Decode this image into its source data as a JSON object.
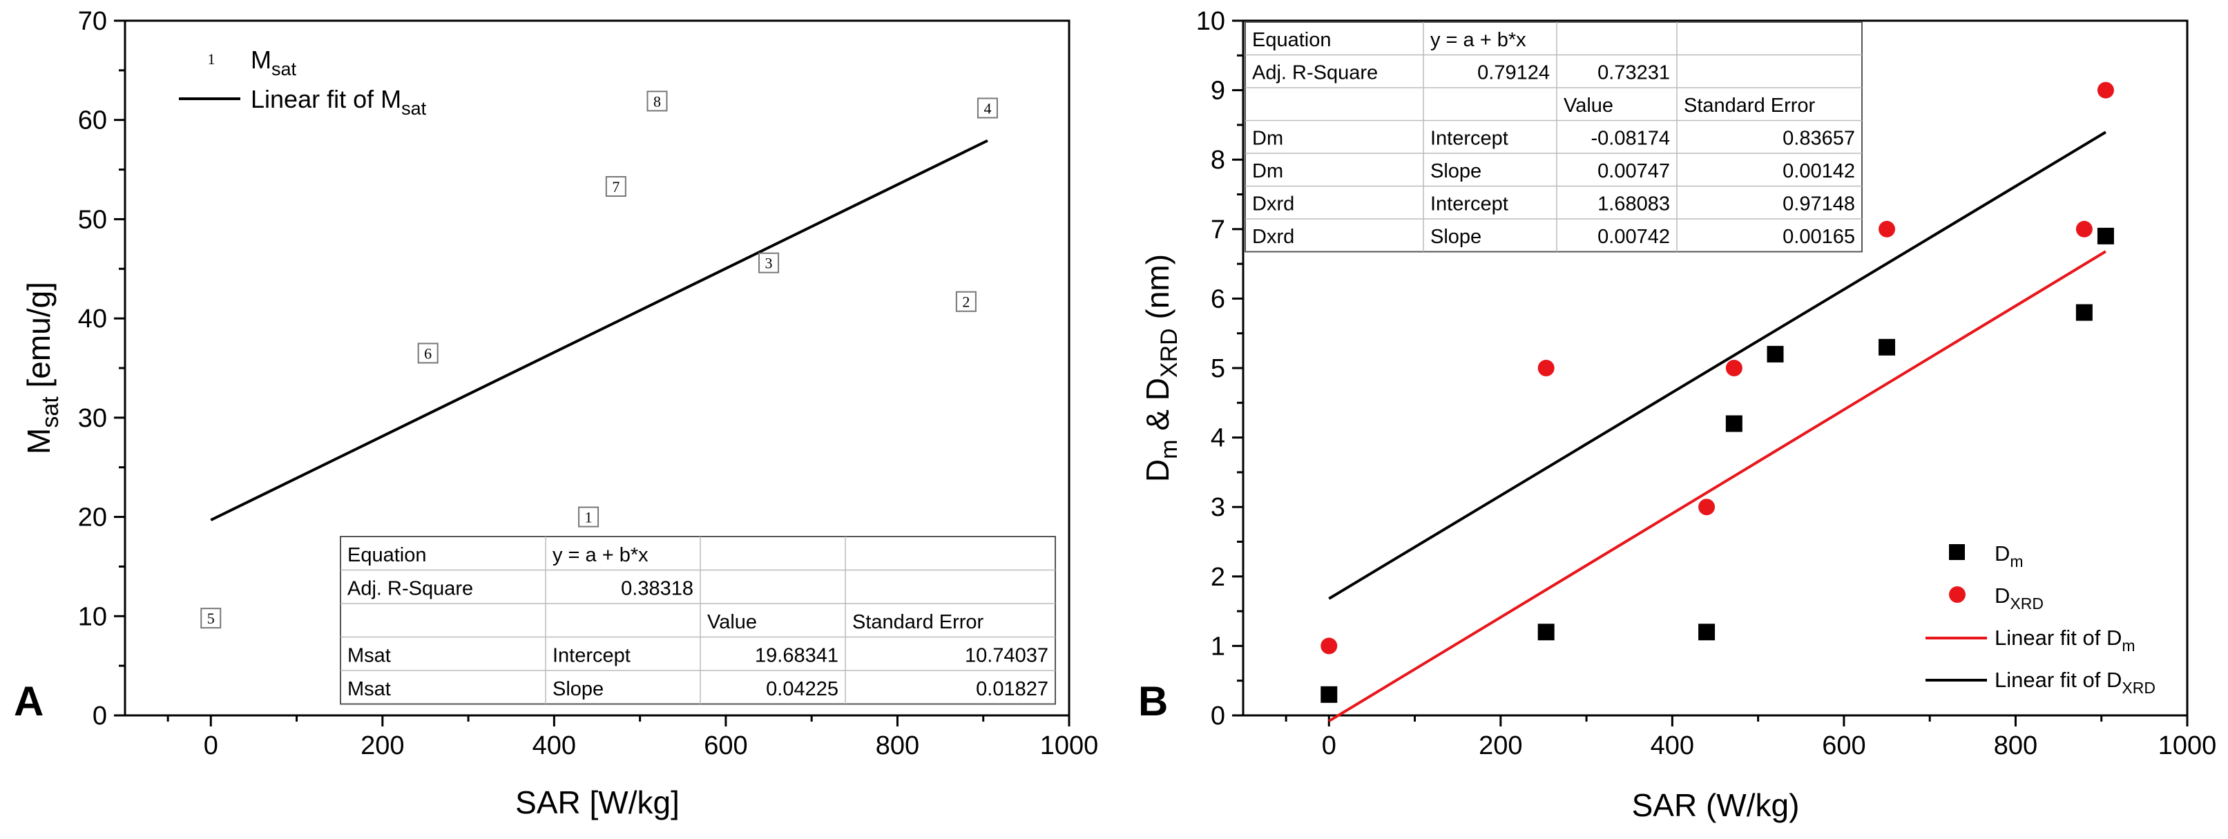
{
  "chart_data": [
    {
      "panel": "A",
      "type": "scatter",
      "xlabel": "SAR [W/kg]",
      "ylabel": {
        "main": "M",
        "sub": "sat",
        "rest": " [emu/g]"
      },
      "xlim": [
        -100,
        1000
      ],
      "ylim": [
        0,
        70
      ],
      "x_ticks": [
        0,
        200,
        400,
        600,
        800,
        1000
      ],
      "y_ticks": [
        0,
        10,
        20,
        30,
        40,
        50,
        60,
        70
      ],
      "points": [
        {
          "label": "1",
          "x": 440,
          "y": 20
        },
        {
          "label": "2",
          "x": 880,
          "y": 41.7
        },
        {
          "label": "3",
          "x": 650,
          "y": 45.6
        },
        {
          "label": "4",
          "x": 905,
          "y": 61.2
        },
        {
          "label": "5",
          "x": 0,
          "y": 9.8
        },
        {
          "label": "6",
          "x": 253,
          "y": 36.5
        },
        {
          "label": "7",
          "x": 472,
          "y": 53.3
        },
        {
          "label": "8",
          "x": 520,
          "y": 61.9
        }
      ],
      "fit": {
        "intercept": 19.68341,
        "slope": 0.04225,
        "x_range": [
          0,
          905
        ]
      },
      "legend": {
        "marker_symbol": "1",
        "scatter": {
          "main": "M",
          "sub": "sat"
        },
        "fit": {
          "main": "Linear fit of M",
          "sub": "sat"
        }
      },
      "table": [
        [
          "Equation",
          "y = a + b*x",
          "",
          ""
        ],
        [
          "Adj. R-Square",
          "0.38318",
          "",
          ""
        ],
        [
          "",
          "",
          "Value",
          "Standard Error"
        ],
        [
          "Msat",
          "Intercept",
          "19.68341",
          "10.74037"
        ],
        [
          "Msat",
          "Slope",
          "0.04225",
          "0.01827"
        ]
      ]
    },
    {
      "panel": "B",
      "type": "scatter",
      "xlabel": "SAR (W/kg)",
      "ylabel": {
        "p1": "D",
        "s1": "m",
        "p2": " & D",
        "s2": "XRD",
        "p3": " (nm)"
      },
      "xlim": [
        -100,
        1000
      ],
      "ylim": [
        0,
        10
      ],
      "x_ticks": [
        0,
        200,
        400,
        600,
        800,
        1000
      ],
      "y_ticks": [
        0,
        1,
        2,
        3,
        4,
        5,
        6,
        7,
        8,
        9,
        10
      ],
      "series": [
        {
          "name": "Dm",
          "marker": "square",
          "color": "#000000",
          "x": [
            0,
            253,
            440,
            472,
            520,
            650,
            880,
            905
          ],
          "y": [
            0.3,
            1.2,
            1.2,
            4.2,
            5.2,
            5.3,
            5.8,
            6.9
          ]
        },
        {
          "name": "DXRD",
          "marker": "circle",
          "color": "#e8161b",
          "x": [
            0,
            253,
            440,
            472,
            650,
            880,
            905
          ],
          "y": [
            1.0,
            5.0,
            3.0,
            5.0,
            7.0,
            7.0,
            9.0
          ]
        }
      ],
      "fits": [
        {
          "name": "Dm",
          "intercept": -0.08174,
          "slope": 0.00747,
          "color": "#e8161b",
          "x_range": [
            0,
            905
          ]
        },
        {
          "name": "DXRD",
          "intercept": 1.68083,
          "slope": 0.00742,
          "color": "#000000",
          "x_range": [
            0,
            905
          ]
        }
      ],
      "legend": {
        "dm": {
          "main": "D",
          "sub": "m"
        },
        "dxrd": {
          "main": "D",
          "sub": "XRD"
        },
        "fit_dm": {
          "main": "Linear fit of D",
          "sub": "m"
        },
        "fit_dxrd": {
          "main": "Linear fit of D",
          "sub": "XRD"
        }
      },
      "table": [
        [
          "Equation",
          "y = a + b*x",
          "",
          ""
        ],
        [
          "Adj. R-Square",
          "0.79124",
          "0.73231",
          ""
        ],
        [
          "",
          "",
          "Value",
          "Standard Error"
        ],
        [
          "Dm",
          "Intercept",
          "-0.08174",
          "0.83657"
        ],
        [
          "Dm",
          "Slope",
          "0.00747",
          "0.00142"
        ],
        [
          "Dxrd",
          "Intercept",
          "1.68083",
          "0.97148"
        ],
        [
          "Dxrd",
          "Slope",
          "0.00742",
          "0.00165"
        ]
      ]
    }
  ],
  "panel_labels": {
    "a": "A",
    "b": "B"
  }
}
